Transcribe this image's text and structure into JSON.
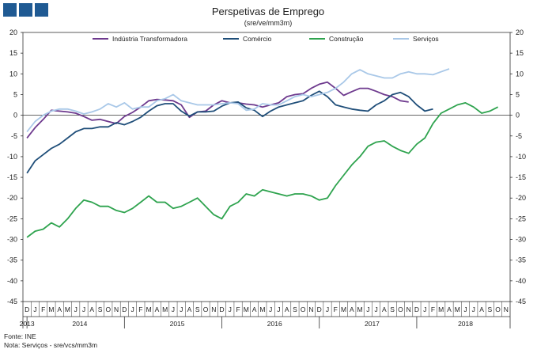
{
  "chart_data": {
    "type": "line",
    "title": "Perspetivas de Emprego",
    "subtitle": "(sre/ve/mm3m)",
    "ylim": [
      -45,
      20
    ],
    "yticks": [
      20,
      15,
      10,
      5,
      0,
      -5,
      -10,
      -15,
      -20,
      -25,
      -30,
      -35,
      -40,
      -45
    ],
    "month_labels": [
      "D",
      "J",
      "F",
      "M",
      "A",
      "M",
      "J",
      "J",
      "A",
      "S",
      "O",
      "N",
      "D",
      "J",
      "F",
      "M",
      "A",
      "M",
      "J",
      "J",
      "A",
      "S",
      "O",
      "N",
      "D",
      "J",
      "F",
      "M",
      "A",
      "M",
      "J",
      "J",
      "A",
      "S",
      "O",
      "N",
      "D",
      "J",
      "F",
      "M",
      "A",
      "M",
      "J",
      "J",
      "A",
      "S",
      "O",
      "N",
      "D",
      "J",
      "F",
      "M",
      "A",
      "M",
      "J",
      "J",
      "A",
      "S",
      "O",
      "N"
    ],
    "year_labels": [
      {
        "label": "2013",
        "month_index": 0
      },
      {
        "label": "2014",
        "month_index": 6.5
      },
      {
        "label": "2015",
        "month_index": 18.5
      },
      {
        "label": "2016",
        "month_index": 30.5
      },
      {
        "label": "2017",
        "month_index": 42.5
      },
      {
        "label": "2018",
        "month_index": 54
      }
    ],
    "year_separators": [
      0.5,
      12.5,
      24.5,
      36.5,
      48.5
    ],
    "legend_position": "top",
    "series": [
      {
        "name": "Indústria Transformadora",
        "color": "#6e3a8e",
        "values": [
          -5.5,
          -3,
          -1,
          1.2,
          1,
          0.8,
          0.5,
          -0.3,
          -1.2,
          -1,
          -1.5,
          -2,
          -0.3,
          0.7,
          2,
          3.5,
          3.8,
          3.7,
          3.5,
          2.5,
          -0.5,
          0.8,
          1,
          2.5,
          3.5,
          3,
          3,
          2.7,
          2.5,
          2,
          2.5,
          3,
          4.5,
          5,
          5.2,
          6.5,
          7.5,
          8,
          6.5,
          4.8,
          5.7,
          6.5,
          6.5,
          5.8,
          5,
          4.5,
          3.5,
          3.2
        ]
      },
      {
        "name": "Comércio",
        "color": "#1f4e79",
        "values": [
          -14,
          -11,
          -9.5,
          -8,
          -7,
          -5.5,
          -4,
          -3.2,
          -3.2,
          -2.8,
          -2.8,
          -1.8,
          -2.3,
          -1.5,
          -0.5,
          1,
          2.3,
          2.8,
          2.8,
          1,
          -0.2,
          0.8,
          0.8,
          1,
          2.2,
          3,
          3.2,
          1.8,
          1.2,
          -0.3,
          1,
          2,
          2.5,
          3,
          3.5,
          4.8,
          5.8,
          4.5,
          2.5,
          2,
          1.5,
          1.2,
          1,
          2.5,
          3.5,
          5,
          5.5,
          4.5,
          2.5,
          1,
          1.5
        ]
      },
      {
        "name": "Construção",
        "color": "#2ea34e",
        "values": [
          -29.5,
          -28,
          -27.5,
          -26,
          -27,
          -25,
          -22.5,
          -20.5,
          -21,
          -22,
          -22,
          -23,
          -23.5,
          -22.5,
          -21,
          -19.5,
          -21,
          -21,
          -22.5,
          -22,
          -21,
          -20,
          -22,
          -24,
          -25,
          -22,
          -21,
          -19,
          -19.5,
          -18,
          -18.5,
          -19,
          -19.5,
          -19,
          -19,
          -19.5,
          -20.5,
          -20,
          -17,
          -14.5,
          -12,
          -10,
          -7.5,
          -6.5,
          -6.2,
          -7.5,
          -8.5,
          -9.2,
          -7,
          -5.5,
          -2,
          0.5,
          1.5,
          2.5,
          3,
          2,
          0.5,
          1,
          2
        ]
      },
      {
        "name": "Serviços",
        "color": "#a9c8e8",
        "values": [
          -4,
          -1.5,
          0,
          1,
          1.5,
          1.5,
          1,
          0.3,
          0.8,
          1.5,
          2.8,
          2,
          3,
          1.5,
          2,
          2,
          3.5,
          4,
          5,
          3.5,
          3,
          2.5,
          2.5,
          2.5,
          2.8,
          3,
          2.8,
          1.2,
          1.5,
          2.8,
          2.5,
          2.5,
          3.5,
          4.5,
          5,
          4.5,
          5,
          5.5,
          6.5,
          8,
          10,
          11,
          10,
          9.5,
          9,
          9,
          10,
          10.5,
          10,
          10,
          9.8,
          10.5,
          11.2
        ]
      }
    ]
  },
  "footer": {
    "source": "Fonte: INE",
    "note": "Nota: Serviços - sre/vcs/mm3m"
  }
}
